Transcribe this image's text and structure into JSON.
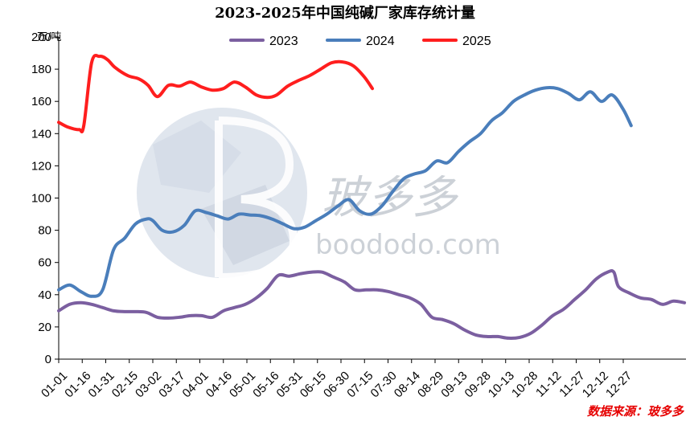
{
  "chart_data": {
    "type": "line",
    "title": "2023-2025年中国纯碱厂家库存统计量",
    "ylabel": "万/吨",
    "ylim": [
      0,
      200
    ],
    "yticks": [
      0,
      20,
      40,
      60,
      80,
      100,
      120,
      140,
      160,
      180,
      200
    ],
    "x_range_days": [
      1,
      366
    ],
    "x_ticks": [
      "01-01",
      "01-16",
      "01-31",
      "02-15",
      "03-02",
      "03-17",
      "04-01",
      "04-16",
      "05-01",
      "05-16",
      "05-31",
      "06-15",
      "06-30",
      "07-15",
      "07-30",
      "08-14",
      "08-29",
      "09-13",
      "09-28",
      "10-13",
      "10-28",
      "11-12",
      "11-27",
      "12-12",
      "12-27"
    ],
    "grid": false,
    "legend_position": "top-center",
    "series": [
      {
        "name": "2023",
        "color": "#7b5fa0",
        "points": [
          [
            1,
            30
          ],
          [
            8,
            34
          ],
          [
            15,
            35
          ],
          [
            22,
            34
          ],
          [
            29,
            32
          ],
          [
            36,
            30
          ],
          [
            43,
            29.5
          ],
          [
            50,
            29.5
          ],
          [
            57,
            29
          ],
          [
            64,
            26
          ],
          [
            71,
            25.5
          ],
          [
            78,
            26
          ],
          [
            85,
            27
          ],
          [
            92,
            27
          ],
          [
            99,
            26
          ],
          [
            106,
            30
          ],
          [
            113,
            32
          ],
          [
            120,
            34
          ],
          [
            127,
            38
          ],
          [
            134,
            44
          ],
          [
            141,
            52
          ],
          [
            148,
            51.5
          ],
          [
            155,
            53
          ],
          [
            162,
            54
          ],
          [
            169,
            54
          ],
          [
            176,
            51
          ],
          [
            183,
            48
          ],
          [
            190,
            43
          ],
          [
            197,
            43
          ],
          [
            204,
            43
          ],
          [
            211,
            42
          ],
          [
            218,
            40
          ],
          [
            225,
            38
          ],
          [
            232,
            34
          ],
          [
            239,
            26
          ],
          [
            246,
            24.5
          ],
          [
            253,
            22
          ],
          [
            260,
            18
          ],
          [
            267,
            15
          ],
          [
            274,
            14
          ],
          [
            281,
            14
          ],
          [
            288,
            13
          ],
          [
            295,
            13.5
          ],
          [
            302,
            16
          ],
          [
            309,
            21
          ],
          [
            316,
            27
          ],
          [
            323,
            31
          ],
          [
            330,
            37
          ],
          [
            337,
            43
          ],
          [
            344,
            50
          ],
          [
            351,
            54
          ],
          [
            355,
            54
          ],
          [
            358,
            45
          ],
          [
            365,
            41
          ],
          [
            372,
            38
          ],
          [
            379,
            37
          ],
          [
            386,
            34
          ],
          [
            393,
            36
          ],
          [
            400,
            35
          ]
        ]
      },
      {
        "name": "2024",
        "color": "#4a7ebb",
        "points": [
          [
            1,
            43
          ],
          [
            8,
            46
          ],
          [
            15,
            42
          ],
          [
            22,
            39
          ],
          [
            29,
            43
          ],
          [
            36,
            68
          ],
          [
            43,
            75
          ],
          [
            50,
            84
          ],
          [
            57,
            87
          ],
          [
            61,
            86
          ],
          [
            67,
            80
          ],
          [
            74,
            79
          ],
          [
            81,
            83
          ],
          [
            88,
            92
          ],
          [
            95,
            91
          ],
          [
            102,
            89
          ],
          [
            109,
            87
          ],
          [
            116,
            90
          ],
          [
            123,
            89.5
          ],
          [
            130,
            89
          ],
          [
            137,
            87
          ],
          [
            144,
            84
          ],
          [
            151,
            81
          ],
          [
            158,
            82
          ],
          [
            165,
            86
          ],
          [
            172,
            90
          ],
          [
            179,
            95
          ],
          [
            186,
            99
          ],
          [
            193,
            92
          ],
          [
            200,
            90
          ],
          [
            207,
            95
          ],
          [
            214,
            104
          ],
          [
            221,
            112
          ],
          [
            228,
            115
          ],
          [
            235,
            117
          ],
          [
            242,
            123
          ],
          [
            249,
            122
          ],
          [
            256,
            129
          ],
          [
            263,
            135
          ],
          [
            270,
            140
          ],
          [
            277,
            148
          ],
          [
            284,
            153
          ],
          [
            291,
            160
          ],
          [
            298,
            164
          ],
          [
            305,
            167
          ],
          [
            312,
            168.5
          ],
          [
            319,
            168
          ],
          [
            326,
            165
          ],
          [
            333,
            161
          ],
          [
            340,
            166
          ],
          [
            347,
            160
          ],
          [
            354,
            164
          ],
          [
            361,
            155
          ],
          [
            366,
            145
          ]
        ]
      },
      {
        "name": "2025",
        "color": "#ff1e1e",
        "points": [
          [
            1,
            147
          ],
          [
            7,
            144
          ],
          [
            14,
            142.5
          ],
          [
            17,
            145
          ],
          [
            22,
            184
          ],
          [
            27,
            188
          ],
          [
            32,
            186
          ],
          [
            37,
            181
          ],
          [
            45,
            176
          ],
          [
            52,
            174
          ],
          [
            58,
            170
          ],
          [
            64,
            163
          ],
          [
            71,
            170
          ],
          [
            78,
            169.5
          ],
          [
            85,
            172
          ],
          [
            92,
            169
          ],
          [
            99,
            167
          ],
          [
            106,
            168
          ],
          [
            113,
            172
          ],
          [
            120,
            169
          ],
          [
            127,
            164
          ],
          [
            134,
            162.5
          ],
          [
            140,
            164
          ],
          [
            147,
            169.5
          ],
          [
            154,
            173
          ],
          [
            161,
            176
          ],
          [
            168,
            180
          ],
          [
            175,
            184
          ],
          [
            182,
            184.5
          ],
          [
            189,
            182
          ],
          [
            196,
            175
          ],
          [
            201,
            168
          ]
        ]
      }
    ]
  },
  "watermark": {
    "brand_cn": "玻多多",
    "domain": "boododo.com"
  },
  "source_label": "数据来源：玻多多"
}
